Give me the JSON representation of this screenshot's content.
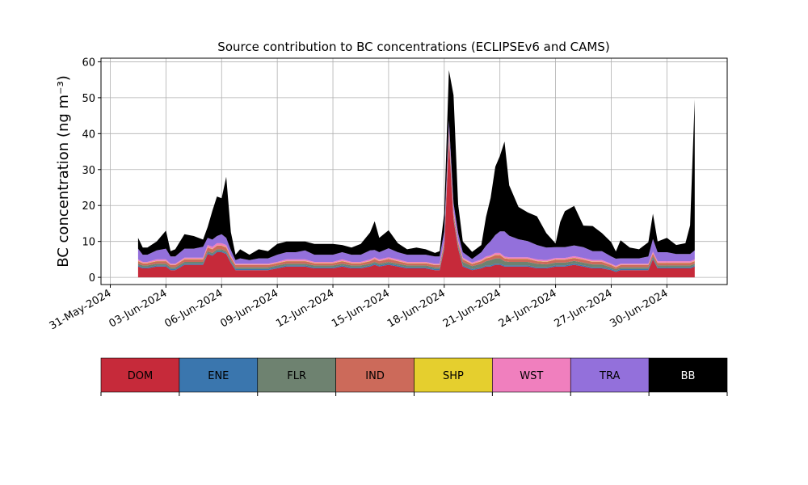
{
  "chart_data": {
    "type": "area",
    "title": "Source contribution to BC concentrations (ECLIPSEv6 and CAMS)",
    "xlabel": "",
    "ylabel": "BC concentration (ng m⁻³)",
    "xlim": [
      "2024-05-30T12:00",
      "2024-07-03T06:00"
    ],
    "ylim": [
      -2,
      61
    ],
    "grid": true,
    "legend_placement": "bottom",
    "x_tick_labels": [
      "31-May-2024",
      "03-Jun-2024",
      "06-Jun-2024",
      "09-Jun-2024",
      "12-Jun-2024",
      "15-Jun-2024",
      "18-Jun-2024",
      "21-Jun-2024",
      "24-Jun-2024",
      "27-Jun-2024",
      "30-Jun-2024"
    ],
    "x_tick_dates": [
      "2024-05-31",
      "2024-06-03",
      "2024-06-06",
      "2024-06-09",
      "2024-06-12",
      "2024-06-15",
      "2024-06-18",
      "2024-06-21",
      "2024-06-24",
      "2024-06-27",
      "2024-06-30"
    ],
    "y_tick_values": [
      0,
      10,
      20,
      30,
      40,
      50,
      60
    ],
    "x": [
      "2024-06-01T12:00",
      "2024-06-01T18:00",
      "2024-06-02T00:00",
      "2024-06-02T12:00",
      "2024-06-03T00:00",
      "2024-06-03T06:00",
      "2024-06-03T12:00",
      "2024-06-04T00:00",
      "2024-06-04T12:00",
      "2024-06-05T00:00",
      "2024-06-05T06:00",
      "2024-06-05T12:00",
      "2024-06-05T18:00",
      "2024-06-06T00:00",
      "2024-06-06T06:00",
      "2024-06-06T12:00",
      "2024-06-06T18:00",
      "2024-06-07T00:00",
      "2024-06-07T12:00",
      "2024-06-08T00:00",
      "2024-06-08T12:00",
      "2024-06-09T00:00",
      "2024-06-09T12:00",
      "2024-06-10T00:00",
      "2024-06-10T12:00",
      "2024-06-11T00:00",
      "2024-06-11T12:00",
      "2024-06-12T00:00",
      "2024-06-12T12:00",
      "2024-06-13T00:00",
      "2024-06-13T12:00",
      "2024-06-14T00:00",
      "2024-06-14T06:00",
      "2024-06-14T12:00",
      "2024-06-15T00:00",
      "2024-06-15T12:00",
      "2024-06-16T00:00",
      "2024-06-16T12:00",
      "2024-06-17T00:00",
      "2024-06-17T12:00",
      "2024-06-17T18:00",
      "2024-06-18T00:00",
      "2024-06-18T06:00",
      "2024-06-18T12:00",
      "2024-06-18T18:00",
      "2024-06-19T00:00",
      "2024-06-19T12:00",
      "2024-06-20T00:00",
      "2024-06-20T06:00",
      "2024-06-20T12:00",
      "2024-06-20T18:00",
      "2024-06-21T00:00",
      "2024-06-21T06:00",
      "2024-06-21T12:00",
      "2024-06-22T00:00",
      "2024-06-22T12:00",
      "2024-06-23T00:00",
      "2024-06-23T12:00",
      "2024-06-24T00:00",
      "2024-06-24T06:00",
      "2024-06-24T12:00",
      "2024-06-25T00:00",
      "2024-06-25T12:00",
      "2024-06-26T00:00",
      "2024-06-26T12:00",
      "2024-06-27T00:00",
      "2024-06-27T06:00",
      "2024-06-27T12:00",
      "2024-06-28T00:00",
      "2024-06-28T12:00",
      "2024-06-29T00:00",
      "2024-06-29T06:00",
      "2024-06-29T12:00",
      "2024-06-30T00:00",
      "2024-06-30T12:00",
      "2024-07-01T00:00",
      "2024-07-01T06:00",
      "2024-07-01T12:00"
    ],
    "series": [
      {
        "name": "DOM",
        "color": "#c62a3a",
        "values": [
          3,
          2.5,
          2.5,
          3,
          3,
          2,
          2,
          3.5,
          3.5,
          3.5,
          6.5,
          6,
          7,
          7,
          6.5,
          4,
          2,
          2,
          2,
          2,
          2,
          2.5,
          3,
          3,
          3,
          2.5,
          2.5,
          2.5,
          3,
          2.5,
          2.5,
          3,
          3.5,
          3,
          3.5,
          3,
          2.5,
          2.5,
          2.5,
          2,
          2,
          8,
          38,
          16,
          8,
          3,
          2,
          2.5,
          3,
          3,
          3.5,
          3.5,
          3,
          3,
          3,
          3,
          2.5,
          2.5,
          3,
          3,
          3,
          3.5,
          3,
          2.5,
          2.5,
          2,
          1.5,
          2,
          2,
          2,
          2,
          5,
          2.5,
          2.5,
          2.5,
          2.5,
          2.5,
          3
        ]
      },
      {
        "name": "ENE",
        "color": "#3a76ae",
        "values": [
          0.3,
          0.3,
          0.3,
          0.3,
          0.3,
          0.3,
          0.3,
          0.3,
          0.3,
          0.3,
          0.3,
          0.3,
          0.3,
          0.3,
          0.3,
          0.3,
          0.3,
          0.3,
          0.3,
          0.3,
          0.3,
          0.3,
          0.3,
          0.3,
          0.3,
          0.3,
          0.3,
          0.3,
          0.3,
          0.3,
          0.3,
          0.3,
          0.3,
          0.3,
          0.3,
          0.3,
          0.3,
          0.3,
          0.3,
          0.3,
          0.3,
          0.3,
          0.3,
          0.3,
          0.3,
          0.3,
          0.3,
          0.3,
          0.3,
          0.3,
          0.3,
          0.3,
          0.3,
          0.3,
          0.3,
          0.3,
          0.3,
          0.3,
          0.3,
          0.3,
          0.3,
          0.3,
          0.3,
          0.3,
          0.3,
          0.3,
          0.3,
          0.3,
          0.3,
          0.3,
          0.3,
          0.3,
          0.3,
          0.3,
          0.3,
          0.3,
          0.3,
          0.3
        ]
      },
      {
        "name": "FLR",
        "color": "#6e8270",
        "values": [
          0.5,
          0.5,
          0.5,
          0.5,
          0.5,
          0.5,
          0.5,
          0.5,
          0.5,
          0.5,
          0.5,
          0.5,
          0.5,
          0.5,
          0.5,
          0.5,
          0.5,
          0.5,
          0.5,
          0.5,
          0.5,
          0.5,
          0.5,
          0.5,
          0.5,
          0.5,
          0.5,
          0.5,
          0.5,
          0.5,
          0.5,
          0.5,
          0.5,
          0.5,
          0.5,
          0.5,
          0.5,
          0.5,
          0.5,
          0.5,
          0.5,
          0.6,
          0.8,
          0.6,
          0.6,
          1,
          0.8,
          1,
          1.2,
          1.5,
          1.5,
          1.5,
          1.2,
          1,
          1,
          1,
          1,
          0.8,
          0.8,
          0.8,
          0.8,
          0.8,
          0.8,
          0.8,
          0.8,
          0.5,
          0.5,
          0.5,
          0.5,
          0.5,
          0.5,
          0.5,
          0.5,
          0.5,
          0.5,
          0.5,
          0.5,
          0.5
        ]
      },
      {
        "name": "IND",
        "color": "#cc6a5a",
        "values": [
          0.7,
          0.6,
          0.6,
          0.7,
          0.7,
          0.6,
          0.6,
          0.7,
          0.7,
          0.7,
          1,
          1,
          1,
          1,
          1,
          0.8,
          0.6,
          0.6,
          0.6,
          0.6,
          0.6,
          0.6,
          0.7,
          0.7,
          0.7,
          0.6,
          0.6,
          0.6,
          0.7,
          0.6,
          0.6,
          0.7,
          0.8,
          0.7,
          0.8,
          0.7,
          0.6,
          0.6,
          0.6,
          0.6,
          0.6,
          0.8,
          1.5,
          1,
          0.8,
          0.7,
          0.6,
          0.7,
          0.8,
          0.8,
          0.9,
          0.9,
          0.8,
          0.8,
          0.8,
          0.8,
          0.7,
          0.7,
          0.8,
          0.8,
          0.8,
          0.8,
          0.8,
          0.7,
          0.7,
          0.6,
          0.5,
          0.6,
          0.6,
          0.6,
          0.6,
          0.8,
          0.7,
          0.7,
          0.7,
          0.7,
          0.7,
          0.7
        ]
      },
      {
        "name": "SHP",
        "color": "#e5cf2e",
        "values": [
          0.1,
          0.1,
          0.1,
          0.1,
          0.1,
          0.1,
          0.1,
          0.1,
          0.1,
          0.1,
          0.1,
          0.1,
          0.1,
          0.1,
          0.1,
          0.1,
          0.1,
          0.1,
          0.1,
          0.1,
          0.1,
          0.1,
          0.1,
          0.1,
          0.1,
          0.1,
          0.1,
          0.1,
          0.1,
          0.1,
          0.1,
          0.1,
          0.1,
          0.1,
          0.1,
          0.1,
          0.1,
          0.1,
          0.1,
          0.1,
          0.1,
          0.1,
          0.1,
          0.1,
          0.1,
          0.1,
          0.1,
          0.1,
          0.1,
          0.1,
          0.1,
          0.1,
          0.1,
          0.1,
          0.1,
          0.1,
          0.1,
          0.1,
          0.1,
          0.1,
          0.1,
          0.1,
          0.1,
          0.1,
          0.1,
          0.1,
          0.1,
          0.1,
          0.1,
          0.1,
          0.1,
          0.1,
          0.1,
          0.1,
          0.1,
          0.1,
          0.1,
          0.1
        ]
      },
      {
        "name": "WST",
        "color": "#f07fbe",
        "values": [
          0.4,
          0.3,
          0.3,
          0.4,
          0.4,
          0.3,
          0.3,
          0.4,
          0.4,
          0.4,
          0.6,
          0.6,
          0.6,
          0.6,
          0.6,
          0.4,
          0.3,
          0.3,
          0.3,
          0.3,
          0.3,
          0.3,
          0.4,
          0.4,
          0.4,
          0.3,
          0.3,
          0.3,
          0.4,
          0.3,
          0.3,
          0.4,
          0.4,
          0.4,
          0.4,
          0.4,
          0.3,
          0.3,
          0.3,
          0.3,
          0.3,
          0.5,
          1,
          0.7,
          0.5,
          0.4,
          0.3,
          0.4,
          0.4,
          0.4,
          0.5,
          0.5,
          0.4,
          0.4,
          0.4,
          0.4,
          0.4,
          0.4,
          0.4,
          0.4,
          0.4,
          0.4,
          0.4,
          0.4,
          0.4,
          0.3,
          0.3,
          0.3,
          0.3,
          0.3,
          0.3,
          0.5,
          0.4,
          0.4,
          0.4,
          0.4,
          0.4,
          0.4
        ]
      },
      {
        "name": "TRA",
        "color": "#9370db",
        "values": [
          3,
          2,
          2,
          2.5,
          3,
          2,
          2,
          2.5,
          2.5,
          3,
          2,
          2,
          2,
          2.5,
          2,
          1.5,
          1,
          1.5,
          1,
          1.5,
          1.5,
          2,
          2,
          2,
          2.5,
          2,
          2,
          2,
          2,
          2,
          2,
          2.5,
          2,
          2,
          2.5,
          2,
          2,
          2,
          2,
          2,
          2,
          2.5,
          2,
          2,
          2,
          1.5,
          1,
          2,
          3,
          4,
          5,
          6,
          7,
          6,
          5,
          4.5,
          4,
          3.5,
          3,
          3,
          3,
          3,
          3,
          2.5,
          2.5,
          2,
          2,
          1.5,
          1.5,
          1.5,
          2,
          3.5,
          2.5,
          2.5,
          2,
          2,
          2,
          2.5
        ]
      },
      {
        "name": "BB",
        "color": "#000000",
        "values": [
          3,
          2,
          2,
          2.5,
          5,
          1.5,
          2,
          4,
          3.5,
          2,
          3,
          8,
          11,
          10,
          17,
          5,
          1.5,
          2.5,
          1.5,
          2.5,
          2,
          3,
          3,
          3,
          2.5,
          3,
          3,
          3,
          2,
          2,
          3,
          5,
          8,
          4,
          5,
          2.5,
          1.5,
          2,
          1.5,
          1,
          1.5,
          5,
          14,
          30,
          8,
          3,
          2,
          2,
          8,
          12,
          19,
          21,
          25,
          14,
          9,
          8,
          8,
          4,
          1,
          7,
          10,
          11,
          6,
          7,
          5,
          4,
          2,
          5,
          3,
          2.5,
          4,
          7,
          3,
          4,
          2.5,
          3,
          8,
          42
        ]
      }
    ]
  }
}
